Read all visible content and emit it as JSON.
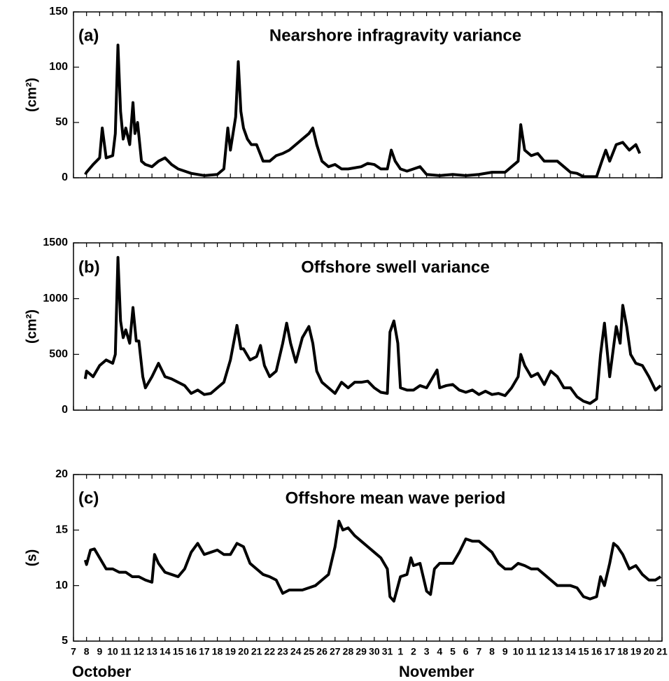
{
  "chart_data": [
    {
      "type": "line",
      "panel_label": "(a)",
      "title": "Nearshore infragravity variance",
      "ylabel": "(cm²)",
      "color": "#000000",
      "xlim": [
        0,
        45
      ],
      "ylim": [
        0,
        150
      ],
      "yticks": [
        0,
        50,
        100,
        150
      ],
      "x": [
        0.9,
        1.0,
        1.5,
        2.0,
        2.2,
        2.5,
        3.0,
        3.2,
        3.4,
        3.6,
        3.8,
        4.0,
        4.3,
        4.55,
        4.7,
        4.9,
        5.2,
        5.5,
        6.0,
        6.5,
        7.0,
        7.5,
        8.0,
        8.5,
        9.0,
        10.0,
        11.0,
        11.5,
        11.8,
        12.0,
        12.4,
        12.6,
        12.8,
        13.0,
        13.3,
        13.6,
        14.0,
        14.5,
        15.0,
        15.5,
        16.0,
        16.5,
        17.0,
        17.5,
        18.0,
        18.3,
        18.6,
        19.0,
        19.5,
        20.0,
        20.5,
        21.0,
        22.0,
        22.5,
        23.0,
        23.5,
        24.0,
        24.3,
        24.6,
        25.0,
        25.5,
        26.0,
        26.5,
        27.0,
        28.0,
        29.0,
        30.0,
        31.0,
        32.0,
        33.0,
        33.5,
        34.0,
        34.2,
        34.5,
        35.0,
        35.5,
        36.0,
        37.0,
        37.5,
        38.0,
        38.5,
        39.0,
        40.0,
        40.4,
        40.7,
        41.0,
        41.5,
        42.0,
        42.5,
        43.0,
        43.3
      ],
      "values": [
        3,
        5,
        12,
        18,
        45,
        18,
        20,
        40,
        120,
        60,
        35,
        45,
        30,
        68,
        40,
        50,
        15,
        12,
        10,
        15,
        18,
        12,
        8,
        6,
        4,
        2,
        3,
        8,
        45,
        25,
        55,
        105,
        60,
        45,
        35,
        30,
        30,
        15,
        15,
        20,
        22,
        25,
        30,
        35,
        40,
        45,
        30,
        15,
        10,
        12,
        8,
        8,
        10,
        13,
        12,
        8,
        8,
        25,
        15,
        8,
        6,
        8,
        10,
        3,
        2,
        3,
        2,
        3,
        5,
        5,
        10,
        15,
        48,
        25,
        20,
        22,
        15,
        15,
        10,
        5,
        4,
        1,
        1,
        15,
        25,
        15,
        30,
        32,
        25,
        30,
        22
      ]
    },
    {
      "type": "line",
      "panel_label": "(b)",
      "title": "Offshore swell variance",
      "ylabel": "(cm²)",
      "color": "#000000",
      "xlim": [
        0,
        45
      ],
      "ylim": [
        0,
        1500
      ],
      "yticks": [
        0,
        500,
        1000,
        1500
      ],
      "x": [
        0.9,
        1.0,
        1.5,
        2.0,
        2.5,
        3.0,
        3.2,
        3.4,
        3.6,
        3.8,
        4.0,
        4.3,
        4.55,
        4.8,
        5.0,
        5.3,
        5.5,
        6.0,
        6.5,
        7.0,
        7.5,
        8.0,
        8.5,
        9.0,
        9.5,
        10.0,
        10.5,
        11.0,
        11.5,
        12.0,
        12.5,
        12.8,
        13.0,
        13.5,
        14.0,
        14.3,
        14.6,
        15.0,
        15.5,
        16.0,
        16.3,
        16.6,
        17.0,
        17.5,
        18.0,
        18.3,
        18.6,
        19.0,
        19.5,
        20.0,
        20.5,
        21.0,
        21.5,
        22.0,
        22.5,
        23.0,
        23.5,
        24.0,
        24.2,
        24.5,
        24.8,
        25.0,
        25.5,
        26.0,
        26.5,
        27.0,
        27.5,
        27.8,
        28.0,
        28.5,
        29.0,
        29.5,
        30.0,
        30.5,
        31.0,
        31.5,
        32.0,
        32.5,
        33.0,
        33.5,
        34.0,
        34.2,
        34.5,
        35.0,
        35.5,
        36.0,
        36.5,
        37.0,
        37.5,
        38.0,
        38.5,
        39.0,
        39.5,
        40.0,
        40.3,
        40.6,
        41.0,
        41.5,
        41.8,
        42.0,
        42.3,
        42.6,
        43.0,
        43.5,
        44.0,
        44.5,
        44.9
      ],
      "values": [
        280,
        350,
        300,
        400,
        450,
        420,
        500,
        1370,
        800,
        650,
        720,
        600,
        920,
        620,
        620,
        300,
        200,
        300,
        420,
        300,
        280,
        250,
        220,
        150,
        180,
        140,
        150,
        200,
        250,
        450,
        760,
        550,
        550,
        450,
        480,
        580,
        400,
        300,
        350,
        600,
        780,
        600,
        430,
        650,
        750,
        600,
        350,
        250,
        200,
        150,
        250,
        200,
        250,
        250,
        260,
        200,
        160,
        150,
        700,
        800,
        600,
        200,
        180,
        180,
        220,
        200,
        300,
        360,
        200,
        220,
        230,
        180,
        160,
        180,
        140,
        170,
        140,
        150,
        130,
        200,
        300,
        500,
        400,
        300,
        330,
        230,
        350,
        300,
        200,
        200,
        120,
        80,
        60,
        100,
        500,
        780,
        300,
        750,
        600,
        940,
        750,
        500,
        420,
        400,
        300,
        180,
        220
      ]
    },
    {
      "type": "line",
      "panel_label": "(c)",
      "title": "Offshore mean wave period",
      "ylabel": "(s)",
      "color": "#000000",
      "xlim": [
        0,
        45
      ],
      "ylim": [
        5,
        20
      ],
      "yticks": [
        5,
        10,
        15,
        20
      ],
      "xticks": [
        {
          "value": 0,
          "label": "7"
        },
        {
          "value": 1,
          "label": "8"
        },
        {
          "value": 2,
          "label": "9"
        },
        {
          "value": 3,
          "label": "10"
        },
        {
          "value": 4,
          "label": "11"
        },
        {
          "value": 5,
          "label": "12"
        },
        {
          "value": 6,
          "label": "13"
        },
        {
          "value": 7,
          "label": "14"
        },
        {
          "value": 8,
          "label": "15"
        },
        {
          "value": 9,
          "label": "16"
        },
        {
          "value": 10,
          "label": "17"
        },
        {
          "value": 11,
          "label": "18"
        },
        {
          "value": 12,
          "label": "19"
        },
        {
          "value": 13,
          "label": "20"
        },
        {
          "value": 14,
          "label": "21"
        },
        {
          "value": 15,
          "label": "22"
        },
        {
          "value": 16,
          "label": "23"
        },
        {
          "value": 17,
          "label": "24"
        },
        {
          "value": 18,
          "label": "25"
        },
        {
          "value": 19,
          "label": "26"
        },
        {
          "value": 20,
          "label": "27"
        },
        {
          "value": 21,
          "label": "28"
        },
        {
          "value": 22,
          "label": "29"
        },
        {
          "value": 23,
          "label": "30"
        },
        {
          "value": 24,
          "label": "31"
        },
        {
          "value": 25,
          "label": "1"
        },
        {
          "value": 26,
          "label": "2"
        },
        {
          "value": 27,
          "label": "3"
        },
        {
          "value": 28,
          "label": "4"
        },
        {
          "value": 29,
          "label": "5"
        },
        {
          "value": 30,
          "label": "6"
        },
        {
          "value": 31,
          "label": "7"
        },
        {
          "value": 32,
          "label": "8"
        },
        {
          "value": 33,
          "label": "9"
        },
        {
          "value": 34,
          "label": "10"
        },
        {
          "value": 35,
          "label": "11"
        },
        {
          "value": 36,
          "label": "12"
        },
        {
          "value": 37,
          "label": "13"
        },
        {
          "value": 38,
          "label": "14"
        },
        {
          "value": 39,
          "label": "15"
        },
        {
          "value": 40,
          "label": "16"
        },
        {
          "value": 41,
          "label": "17"
        },
        {
          "value": 42,
          "label": "18"
        },
        {
          "value": 43,
          "label": "19"
        },
        {
          "value": 44,
          "label": "20"
        },
        {
          "value": 45,
          "label": "21"
        }
      ],
      "annotations": [
        "October",
        "November"
      ],
      "x": [
        0.9,
        1.0,
        1.3,
        1.6,
        2.0,
        2.5,
        3.0,
        3.5,
        4.0,
        4.5,
        5.0,
        5.5,
        6.0,
        6.2,
        6.5,
        7.0,
        7.5,
        8.0,
        8.5,
        9.0,
        9.5,
        10.0,
        10.5,
        11.0,
        11.5,
        12.0,
        12.5,
        13.0,
        13.5,
        14.0,
        14.5,
        15.0,
        15.5,
        16.0,
        16.5,
        17.0,
        17.5,
        18.0,
        18.5,
        19.0,
        19.5,
        20.0,
        20.3,
        20.6,
        21.0,
        21.5,
        22.0,
        22.5,
        23.0,
        23.5,
        24.0,
        24.2,
        24.5,
        25.0,
        25.5,
        25.8,
        26.0,
        26.5,
        27.0,
        27.3,
        27.6,
        28.0,
        28.5,
        29.0,
        29.5,
        30.0,
        30.5,
        31.0,
        31.5,
        32.0,
        32.5,
        33.0,
        33.5,
        34.0,
        34.5,
        35.0,
        35.5,
        36.0,
        36.5,
        37.0,
        37.5,
        38.0,
        38.5,
        39.0,
        39.5,
        40.0,
        40.3,
        40.6,
        41.0,
        41.3,
        41.6,
        42.0,
        42.5,
        43.0,
        43.5,
        44.0,
        44.5,
        44.9
      ],
      "values": [
        12.3,
        11.9,
        13.2,
        13.3,
        12.5,
        11.5,
        11.5,
        11.2,
        11.2,
        10.8,
        10.8,
        10.5,
        10.3,
        12.8,
        12.0,
        11.2,
        11.0,
        10.8,
        11.5,
        13.0,
        13.8,
        12.8,
        13.0,
        13.2,
        12.8,
        12.8,
        13.8,
        13.5,
        12.0,
        11.5,
        11.0,
        10.8,
        10.5,
        9.3,
        9.6,
        9.6,
        9.6,
        9.8,
        10.0,
        10.5,
        11.0,
        13.5,
        15.8,
        15.0,
        15.2,
        14.5,
        14.0,
        13.5,
        13.0,
        12.5,
        11.5,
        9.0,
        8.6,
        10.8,
        11.0,
        12.5,
        11.8,
        12.0,
        9.5,
        9.2,
        11.5,
        12.0,
        12.0,
        12.0,
        13.0,
        14.2,
        14.0,
        14.0,
        13.5,
        13.0,
        12.0,
        11.5,
        11.5,
        12.0,
        11.8,
        11.5,
        11.5,
        11.0,
        10.5,
        10.0,
        10.0,
        10.0,
        9.8,
        9.0,
        8.8,
        9.0,
        10.8,
        10.0,
        12.0,
        13.8,
        13.5,
        12.8,
        11.5,
        11.8,
        11.0,
        10.5,
        10.5,
        10.8
      ]
    }
  ]
}
